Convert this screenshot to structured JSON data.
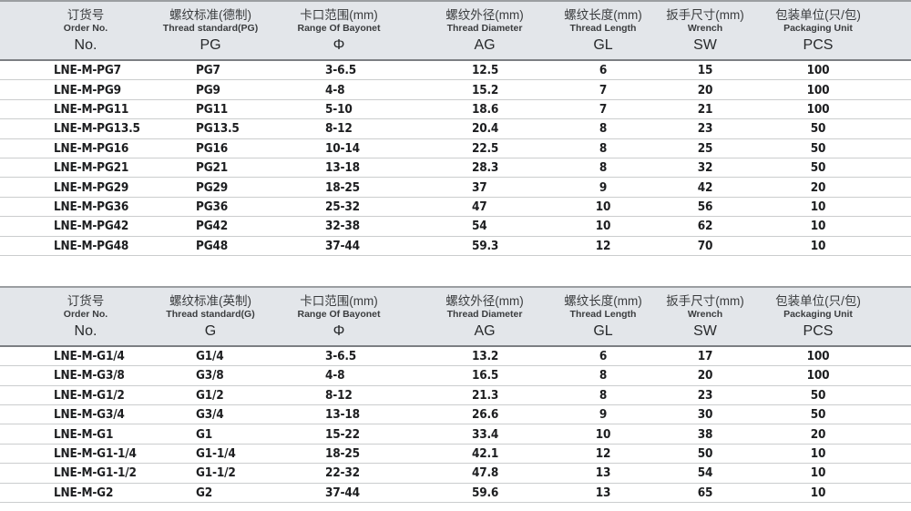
{
  "colors": {
    "header_background": "#e3e6ea",
    "header_top_border": "#9b9ea1",
    "header_bottom_border": "#7c7f83",
    "row_divider": "#cbcdce",
    "data_text": "#1d1e20",
    "header_text": "#3a3c3e"
  },
  "tables": [
    {
      "name": "pg-thread-table",
      "headers": [
        {
          "cn": "订货号",
          "en": "Order No.",
          "code": "No."
        },
        {
          "cn": "螺纹标准(德制)",
          "en": "Thread standard(PG)",
          "code": "PG"
        },
        {
          "cn": "卡口范围(mm)",
          "en": "Range Of Bayonet",
          "code": "Φ"
        },
        {
          "cn": "螺纹外径(mm)",
          "en": "Thread Diameter",
          "code": "AG"
        },
        {
          "cn": "螺纹长度(mm)",
          "en": "Thread Length",
          "code": "GL"
        },
        {
          "cn": "扳手尺寸(mm)",
          "en": "Wrench",
          "code": "SW"
        },
        {
          "cn": "包装单位(只/包)",
          "en": "Packaging Unit",
          "code": "PCS"
        }
      ],
      "rows": [
        [
          "LNE-M-PG7",
          "PG7",
          "3-6.5",
          "12.5",
          "6",
          "15",
          "100"
        ],
        [
          "LNE-M-PG9",
          "PG9",
          "4-8",
          "15.2",
          "7",
          "20",
          "100"
        ],
        [
          "LNE-M-PG11",
          "PG11",
          "5-10",
          "18.6",
          "7",
          "21",
          "100"
        ],
        [
          "LNE-M-PG13.5",
          "PG13.5",
          "8-12",
          "20.4",
          "8",
          "23",
          "50"
        ],
        [
          "LNE-M-PG16",
          "PG16",
          "10-14",
          "22.5",
          "8",
          "25",
          "50"
        ],
        [
          "LNE-M-PG21",
          "PG21",
          "13-18",
          "28.3",
          "8",
          "32",
          "50"
        ],
        [
          "LNE-M-PG29",
          "PG29",
          "18-25",
          "37",
          "9",
          "42",
          "20"
        ],
        [
          "LNE-M-PG36",
          "PG36",
          "25-32",
          "47",
          "10",
          "56",
          "10"
        ],
        [
          "LNE-M-PG42",
          "PG42",
          "32-38",
          "54",
          "10",
          "62",
          "10"
        ],
        [
          "LNE-M-PG48",
          "PG48",
          "37-44",
          "59.3",
          "12",
          "70",
          "10"
        ]
      ]
    },
    {
      "name": "g-thread-table",
      "headers": [
        {
          "cn": "订货号",
          "en": "Order No.",
          "code": "No."
        },
        {
          "cn": "螺纹标准(英制)",
          "en": "Thread standard(G)",
          "code": "G"
        },
        {
          "cn": "卡口范围(mm)",
          "en": "Range Of Bayonet",
          "code": "Φ"
        },
        {
          "cn": "螺纹外径(mm)",
          "en": "Thread Diameter",
          "code": "AG"
        },
        {
          "cn": "螺纹长度(mm)",
          "en": "Thread Length",
          "code": "GL"
        },
        {
          "cn": "扳手尺寸(mm)",
          "en": "Wrench",
          "code": "SW"
        },
        {
          "cn": "包装单位(只/包)",
          "en": "Packaging Unit",
          "code": "PCS"
        }
      ],
      "rows": [
        [
          "LNE-M-G1/4",
          "G1/4",
          "3-6.5",
          "13.2",
          "6",
          "17",
          "100"
        ],
        [
          "LNE-M-G3/8",
          "G3/8",
          "4-8",
          "16.5",
          "8",
          "20",
          "100"
        ],
        [
          "LNE-M-G1/2",
          "G1/2",
          "8-12",
          "21.3",
          "8",
          "23",
          "50"
        ],
        [
          "LNE-M-G3/4",
          "G3/4",
          "13-18",
          "26.6",
          "9",
          "30",
          "50"
        ],
        [
          "LNE-M-G1",
          "G1",
          "15-22",
          "33.4",
          "10",
          "38",
          "20"
        ],
        [
          "LNE-M-G1-1/4",
          "G1-1/4",
          "18-25",
          "42.1",
          "12",
          "50",
          "10"
        ],
        [
          "LNE-M-G1-1/2",
          "G1-1/2",
          "22-32",
          "47.8",
          "13",
          "54",
          "10"
        ],
        [
          "LNE-M-G2",
          "G2",
          "37-44",
          "59.6",
          "13",
          "65",
          "10"
        ]
      ]
    }
  ]
}
